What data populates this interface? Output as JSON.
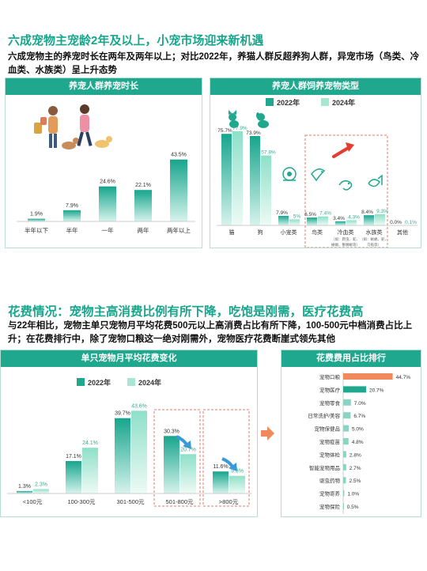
{
  "section1": {
    "heading": "六成宠物主宠龄2年及以上，小宠市场迎来新机遇",
    "description": "六成宠物主的养宠时长在两年及两年以上；对比2022年，养猫人群反超养狗人群，异宠市场（鸟类、冷血类、水族类）呈上升态势"
  },
  "section2": {
    "heading": "花费情况：宠物主高消费比例有所下降，吃饱是刚需，医疗花费高",
    "description": "与22年相比，宠物主单只宠物月平均花费500元以上高消费占比有所下降，100-500元中档消费占比上升；在花费排行中，除了宠物口粮这一绝对刚需外，宠物医疗花费断崖式领先其他"
  },
  "colors": {
    "primary": "#1fa88e",
    "light": "#a8e6d4",
    "accent": "#f08a5d",
    "arrow_blue": "#3a9ad9"
  },
  "chart_data": [
    {
      "type": "bar",
      "title": "养宠人群养宠时长",
      "categories": [
        "半年以下",
        "半年",
        "一年",
        "两年",
        "两年以上"
      ],
      "values": [
        1.9,
        7.9,
        24.6,
        22.1,
        43.5
      ],
      "labels": [
        "1.9%",
        "7.9%",
        "24.6%",
        "22.1%",
        "43.5%"
      ],
      "ylim": [
        0,
        50
      ]
    },
    {
      "type": "bar",
      "title": "养宠人群饲养宠物类型",
      "categories": [
        "猫",
        "狗",
        "小宠类",
        "鸟类",
        "冷血类",
        "水族类",
        "其他"
      ],
      "category_notes": [
        "",
        "",
        "",
        "",
        "（如：爬虫、蛇、蜥蜴、鬃狮蜥等）",
        "（如：蜥蜴、蛇、乌龟等）",
        ""
      ],
      "series": [
        {
          "name": "2022年",
          "values": [
            75.7,
            73.9,
            7.9,
            6.5,
            3.4,
            8.4,
            0.0
          ],
          "labels": [
            "75.7%",
            "73.9%",
            "7.9%",
            "6.5%",
            "3.4%",
            "8.4%",
            "0.0%"
          ]
        },
        {
          "name": "2024年",
          "values": [
            77.9,
            57.8,
            5.0,
            7.4,
            4.3,
            9.3,
            0.1
          ],
          "labels": [
            "77.9%",
            "57.8%",
            "5%",
            "7.4%",
            "4.3%",
            "9.3%",
            "0.1%"
          ]
        }
      ],
      "icons": [
        "cat-icon",
        "dog-icon",
        "hamster-icon",
        "bird-icon",
        "chameleon-icon",
        "fish-icon",
        ""
      ],
      "ylim": [
        0,
        85
      ]
    },
    {
      "type": "bar",
      "title": "单只宠物月平均花费变化",
      "categories": [
        "<100元",
        "100-300元",
        "301-500元",
        "501-800元",
        ">800元"
      ],
      "series": [
        {
          "name": "2022年",
          "values": [
            1.3,
            17.1,
            39.7,
            30.3,
            11.6
          ],
          "labels": [
            "1.3%",
            "17.1%",
            "39.7%",
            "30.3%",
            "11.6%"
          ]
        },
        {
          "name": "2024年",
          "values": [
            2.3,
            24.1,
            43.6,
            20.7,
            9.3
          ],
          "labels": [
            "2.3%",
            "24.1%",
            "43.6%",
            "20.7%",
            "9.3%"
          ]
        }
      ],
      "ylim": [
        0,
        50
      ]
    },
    {
      "type": "bar",
      "orientation": "horizontal",
      "title": "花费费用占比排行",
      "categories": [
        "宠物口粮",
        "宠物医疗",
        "宠物零食",
        "日常洗护/美容",
        "宠物保健品",
        "宠物疫苗",
        "宠物体检",
        "智能宠物用品",
        "驱虫药物",
        "宠物寄养",
        "宠物保险"
      ],
      "values": [
        44.7,
        20.7,
        7.0,
        6.7,
        5.0,
        4.8,
        2.8,
        2.7,
        2.5,
        1.0,
        0.5
      ],
      "labels": [
        "44.7%",
        "20.7%",
        "7.0%",
        "6.7%",
        "5.0%",
        "4.8%",
        "2.8%",
        "2.7%",
        "2.5%",
        "1.0%",
        "0.5%"
      ],
      "xlim": [
        0,
        50
      ]
    }
  ]
}
